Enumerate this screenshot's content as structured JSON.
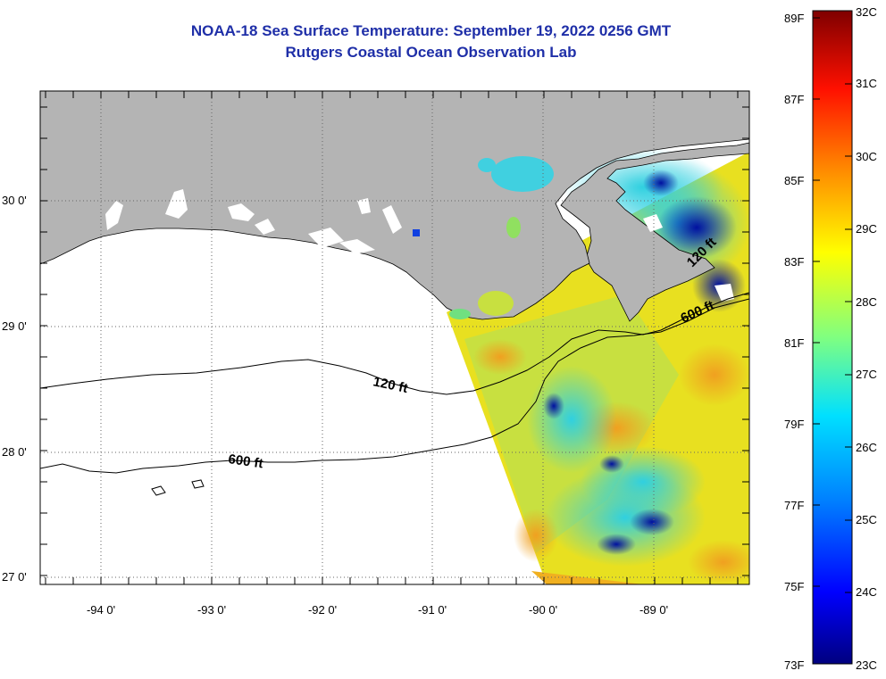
{
  "title": {
    "line1": "NOAA-18 Sea Surface Temperature:  September 19, 2022 0256 GMT",
    "line2": "Rutgers Coastal Ocean Observation Lab"
  },
  "map": {
    "lon_labels": [
      "-94 0'",
      "-93 0'",
      "-92 0'",
      "-91 0'",
      "-90 0'",
      "-89 0'"
    ],
    "lat_labels": [
      "30 0'",
      "29 0'",
      "28 0'",
      "27 0'"
    ],
    "contour_labels": [
      "120 ft",
      "600 ft",
      "600 ft",
      "120 ft"
    ],
    "colors": {
      "land": "#b4b4b4",
      "ocean_nodata": "#ffffff",
      "grid": "#666666"
    }
  },
  "colorbar": {
    "f_labels": [
      "89F",
      "87F",
      "85F",
      "83F",
      "81F",
      "79F",
      "77F",
      "75F",
      "73F"
    ],
    "c_labels": [
      "32C",
      "31C",
      "30C",
      "29C",
      "28C",
      "27C",
      "26C",
      "25C",
      "24C",
      "23C"
    ],
    "colors": [
      "#00007f",
      "#0000ff",
      "#0080ff",
      "#00ffff",
      "#80ff80",
      "#ffff00",
      "#ff8000",
      "#ff0000",
      "#7f0000"
    ]
  }
}
